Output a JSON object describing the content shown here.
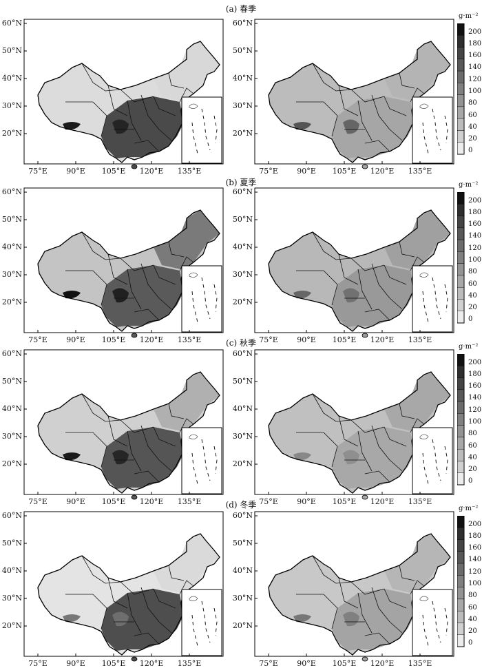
{
  "seasons": [
    {
      "label": "(a) 春季"
    },
    {
      "label": "(b) 夏季"
    },
    {
      "label": "(c) 秋季"
    },
    {
      "label": "(d) 冬季"
    }
  ],
  "axes": {
    "lat_labels": [
      "60°N",
      "50°N",
      "40°N",
      "30°N",
      "20°N"
    ],
    "lon_labels": [
      "75°E",
      "90°E",
      "105°E",
      "120°E",
      "135°E"
    ]
  },
  "colorbar": {
    "unit": "g·m⁻²",
    "ticks": [
      "200",
      "180",
      "160",
      "140",
      "120",
      "100",
      "80",
      "60",
      "40",
      "20",
      "0"
    ],
    "colors": [
      "#111111",
      "#2e2e2e",
      "#444444",
      "#585858",
      "#6c6c6c",
      "#808080",
      "#949494",
      "#a8a8a8",
      "#bcbcbc",
      "#d0d0d0",
      "#ececec"
    ]
  },
  "map_shading": {
    "spring": {
      "left": {
        "east": "#4a4a4a",
        "west": "#dcdcdc",
        "north": "#d8d8d8",
        "hot": "#1a1a1a"
      },
      "right": {
        "east": "#a6a6a6",
        "west": "#bcbcbc",
        "north": "#b4b4b4",
        "hot": "#555555"
      }
    },
    "summer": {
      "left": {
        "east": "#5a5a5a",
        "west": "#c4c4c4",
        "north": "#7a7a7a",
        "hot": "#111111"
      },
      "right": {
        "east": "#999999",
        "west": "#b8b8b8",
        "north": "#a0a0a0",
        "hot": "#666666"
      }
    },
    "autumn": {
      "left": {
        "east": "#555555",
        "west": "#d0d0d0",
        "north": "#b0b0b0",
        "hot": "#1a1a1a"
      },
      "right": {
        "east": "#a8a8a8",
        "west": "#c0c0c0",
        "north": "#a8a8a8",
        "hot": "#888888"
      }
    },
    "winter": {
      "left": {
        "east": "#4e4e4e",
        "west": "#e4e4e4",
        "north": "#dadada",
        "hot": "#777777"
      },
      "right": {
        "east": "#a4a4a4",
        "west": "#c8c8c8",
        "north": "#b6b6b6",
        "hot": "#777777"
      }
    }
  }
}
